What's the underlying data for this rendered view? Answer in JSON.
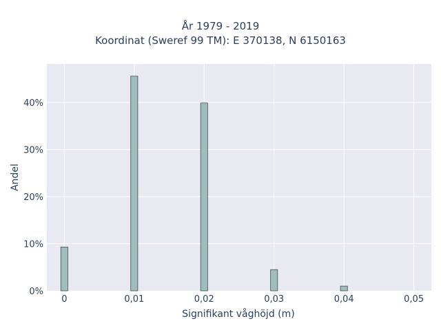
{
  "chart_data": {
    "type": "bar",
    "title_lines": [
      "År 1979 - 2019",
      "Koordinat (Sweref 99 TM): E 370138, N 6150163"
    ],
    "xlabel": "Signifikant våghöjd (m)",
    "ylabel": "Andel",
    "x_ticks": [
      "0",
      "0,01",
      "0,02",
      "0,03",
      "0,04",
      "0,05"
    ],
    "y_ticks": [
      "0%",
      "10%",
      "20%",
      "30%",
      "40%"
    ],
    "xlim": [
      -0.0025,
      0.0525
    ],
    "ylim": [
      0,
      48.2
    ],
    "grid": true,
    "colors": {
      "bar_fill": "#a0bcbc",
      "bar_stroke": "#3d4d4d",
      "plot_bg": "#e9e9f2",
      "grid": "#ffffff"
    },
    "bars": [
      {
        "x": 0.0,
        "value": 9.3
      },
      {
        "x": 0.01,
        "value": 45.6
      },
      {
        "x": 0.02,
        "value": 39.9
      },
      {
        "x": 0.03,
        "value": 4.5
      },
      {
        "x": 0.04,
        "value": 1.0
      }
    ]
  }
}
